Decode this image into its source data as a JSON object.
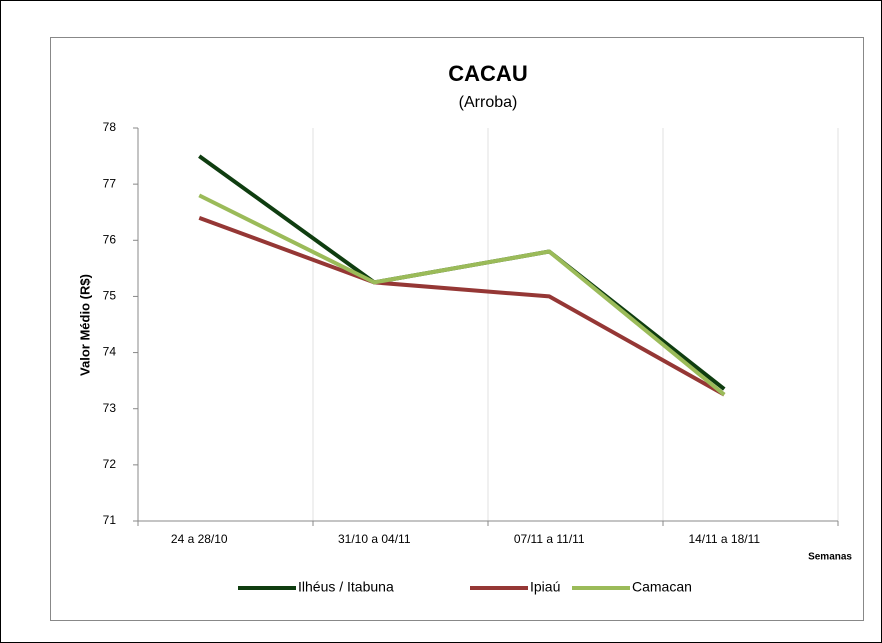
{
  "chart_data": {
    "type": "line",
    "title": "CACAU",
    "subtitle": "(Arroba)",
    "y_label": "Valor Médio (R$)",
    "x_label": "Semanas",
    "categories": [
      "24 a 28/10",
      "31/10 a 04/11",
      "07/11 a 11/11",
      "14/11 a 18/11"
    ],
    "series": [
      {
        "name": "Ilhéus / Itabuna",
        "color": "#0f3d10",
        "values": [
          77.5,
          75.25,
          75.8,
          73.35
        ]
      },
      {
        "name": "Ipiaú",
        "color": "#953735",
        "values": [
          76.4,
          75.25,
          75.0,
          73.25
        ]
      },
      {
        "name": "Camacan",
        "color": "#9bbb59",
        "values": [
          76.8,
          75.25,
          75.8,
          73.25
        ]
      }
    ],
    "ylim": [
      71,
      78
    ],
    "yticks": [
      71,
      72,
      73,
      74,
      75,
      76,
      77,
      78
    ],
    "grid": true,
    "legend": "bottom"
  }
}
